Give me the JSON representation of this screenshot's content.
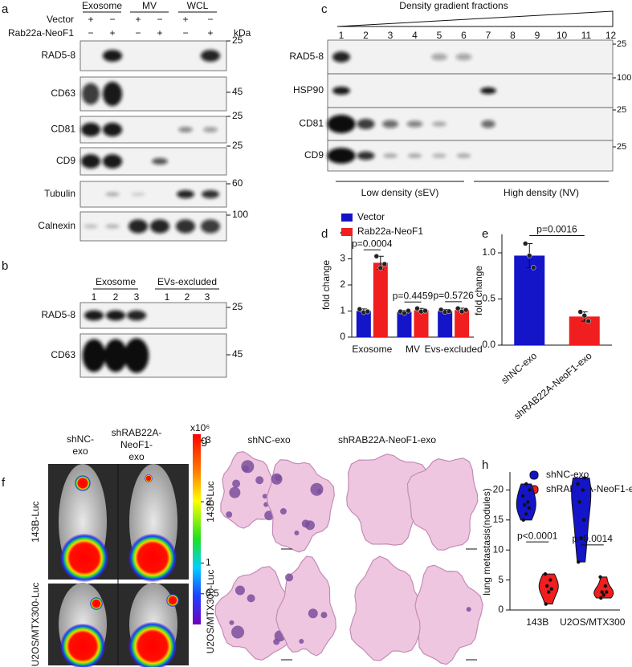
{
  "panels": {
    "a": {
      "label": "a",
      "groups": [
        "Exosome",
        "MV",
        "WCL"
      ],
      "conditions": [
        {
          "name": "Vector",
          "signs": [
            "+",
            "−",
            "+",
            "−",
            "+",
            "−"
          ]
        },
        {
          "name": "Rab22a-NeoF1",
          "signs": [
            "−",
            "+",
            "−",
            "+",
            "−",
            "+"
          ]
        }
      ],
      "unit": "kDa",
      "blots": [
        {
          "name": "RAD5-8",
          "marker": 25
        },
        {
          "name": "CD63",
          "marker": 45
        },
        {
          "name": "CD81",
          "marker": 25
        },
        {
          "name": "CD9",
          "marker": 25
        },
        {
          "name": "Tubulin",
          "marker": 60
        },
        {
          "name": "Calnexin",
          "marker": 100
        }
      ]
    },
    "b": {
      "label": "b",
      "groups": [
        "Exosome",
        "EVs-excluded"
      ],
      "lanes": [
        1,
        2,
        3,
        1,
        2,
        3
      ],
      "blots": [
        {
          "name": "RAD5-8",
          "marker": 25
        },
        {
          "name": "CD63",
          "marker": 45
        }
      ]
    },
    "c": {
      "label": "c",
      "title": "Density gradient fractions",
      "lanes": [
        1,
        2,
        3,
        4,
        5,
        6,
        7,
        8,
        9,
        10,
        11,
        12
      ],
      "blots": [
        {
          "name": "RAD5-8",
          "marker": 25
        },
        {
          "name": "HSP90",
          "marker": 100
        },
        {
          "name": "CD81",
          "marker": 25
        },
        {
          "name": "CD9",
          "marker": 25
        }
      ],
      "regions": [
        "Low density (sEV)",
        "High density (NV)"
      ]
    },
    "f": {
      "label": "f",
      "columns": [
        [
          "shNC-",
          "exo"
        ],
        [
          "shRAB22A-",
          "NeoF1-",
          "exo"
        ]
      ],
      "rows": [
        "143B-Luc",
        "U2OS/MTX300-Luc"
      ],
      "colorbar": {
        "unit": "x10⁶",
        "lim": [
          0,
          3.1
        ],
        "ticks": [
          3,
          2,
          1,
          0.5
        ]
      }
    },
    "g": {
      "label": "g",
      "columns": [
        "shNC-exo",
        "shRAB22A-NeoF1-exo"
      ],
      "rows": [
        "143B-Luc",
        "U2OS/MTX300-Luc"
      ]
    }
  },
  "chart_data": [
    {
      "type": "bar",
      "panel_label": "d",
      "ylabel": "fold change",
      "categories": [
        "Exosome",
        "MV",
        "Evs-excluded"
      ],
      "series": [
        {
          "name": "Vector",
          "color": "#1414c8",
          "values": [
            1,
            0.97,
            1
          ],
          "errors": [
            0.08,
            0.05,
            0.06
          ],
          "points": [
            [
              1.07,
              0.95,
              0.98
            ],
            [
              0.98,
              0.92,
              1.01
            ],
            [
              1.05,
              0.96,
              0.99
            ]
          ]
        },
        {
          "name": "Rab22a-NeoF1",
          "color": "#f01e1e",
          "values": [
            2.85,
            1.03,
            1.04
          ],
          "errors": [
            0.25,
            0.07,
            0.07
          ],
          "points": [
            [
              3.1,
              2.65,
              2.8
            ],
            [
              1.1,
              0.98,
              1.01
            ],
            [
              1.1,
              0.98,
              1.04
            ]
          ]
        }
      ],
      "ylim": [
        0,
        4
      ],
      "yticks": [
        0,
        1,
        2,
        3,
        4
      ],
      "annotations": [
        "p=0.0004",
        "p=0.4459",
        "p=0.5726"
      ],
      "legend": "top-left"
    },
    {
      "type": "bar",
      "panel_label": "e",
      "ylabel": "fold change",
      "categories": [
        "shNC-exo",
        "shRAB22A-NeoF1-exo"
      ],
      "values": [
        0.97,
        0.31
      ],
      "errors": [
        0.13,
        0.05
      ],
      "points": [
        [
          1.1,
          0.97,
          0.84
        ],
        [
          0.36,
          0.32,
          0.26
        ]
      ],
      "colors": [
        "#1414c8",
        "#f01e1e"
      ],
      "ylim": [
        0,
        1.2
      ],
      "yticks": [
        {
          "value": 0,
          "label": "0.0"
        },
        {
          "value": 0.5,
          "label": "0.5"
        },
        {
          "value": 1,
          "label": "1.0"
        }
      ],
      "annotations": [
        "p=0.0016"
      ]
    },
    {
      "type": "violin",
      "panel_label": "h",
      "ylabel": "lung metastasis(nodules)",
      "categories": [
        "143B",
        "U2OS/MTX300"
      ],
      "series": [
        {
          "name": "shNC-exo",
          "color": "#1414c8",
          "values": [
            [
              15,
              16,
              17,
              17.5,
              18,
              19,
              20,
              21
            ],
            [
              8,
              12,
              15,
              18,
              20,
              21,
              22
            ]
          ]
        },
        {
          "name": "shRAB22A-NeoF1-exo",
          "color": "#f01e1e",
          "values": [
            [
              1,
              3,
              3.5,
              4,
              5,
              6
            ],
            [
              2,
              2.5,
              3,
              3,
              4,
              5.5
            ]
          ]
        }
      ],
      "ylim": [
        0,
        23
      ],
      "yticks": [
        0,
        5,
        10,
        15,
        20
      ],
      "annotations": [
        "p<0.0001",
        "p=0.0014"
      ],
      "legend": "top-left"
    }
  ]
}
